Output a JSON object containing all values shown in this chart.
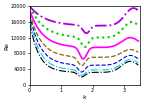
{
  "title": "",
  "xlabel": "k",
  "ylabel": "Re",
  "xlim": [
    0,
    3.5
  ],
  "ylim": [
    0,
    20000
  ],
  "yticks": [
    0,
    4000,
    8000,
    12000,
    16000,
    20000
  ],
  "xticks": [
    0,
    1,
    2,
    3
  ],
  "curves": [
    {
      "color": "#000000",
      "linestyle": "-.",
      "linewidth": 0.8,
      "label": "black"
    },
    {
      "color": "#00ccee",
      "linestyle": "-.",
      "linewidth": 0.8,
      "label": "cyan"
    },
    {
      "color": "#0000dd",
      "linestyle": "--",
      "linewidth": 0.8,
      "label": "blue"
    },
    {
      "color": "#886600",
      "linestyle": "--",
      "linewidth": 0.9,
      "label": "brown"
    },
    {
      "color": "#ff00ff",
      "linestyle": "-",
      "linewidth": 1.2,
      "label": "magenta"
    },
    {
      "color": "#00cc00",
      "linestyle": ":",
      "linewidth": 1.5,
      "label": "green"
    },
    {
      "color": "#aa00dd",
      "linestyle": "-.",
      "linewidth": 1.3,
      "label": "purple"
    }
  ],
  "background_color": "#ffffff"
}
